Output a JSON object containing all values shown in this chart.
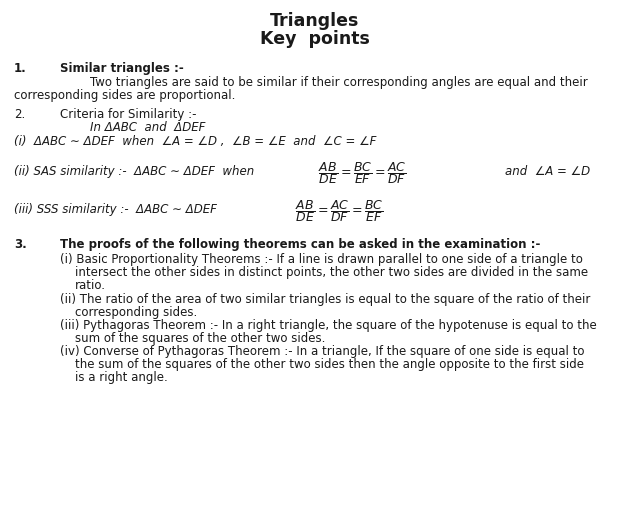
{
  "title_line1": "Triangles",
  "title_line2": "Key  points",
  "background_color": "#ffffff",
  "text_color": "#1a1a1a",
  "title_fontsize": 12.5,
  "body_fontsize": 8.5,
  "italic_fontsize": 8.5,
  "fig_width": 6.31,
  "fig_height": 5.16,
  "dpi": 100
}
